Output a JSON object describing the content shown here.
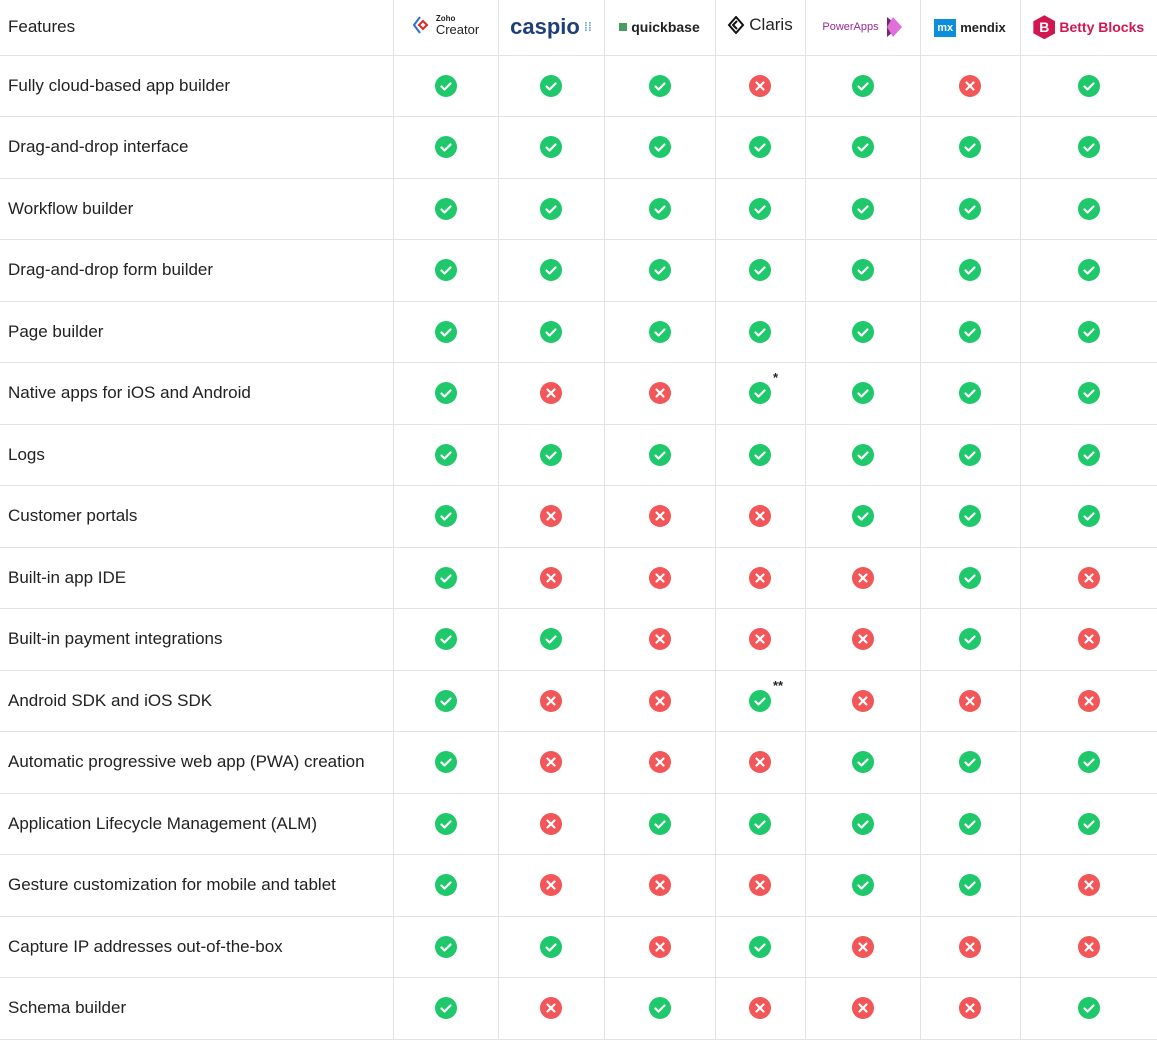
{
  "header": {
    "features_label": "Features"
  },
  "vendors": [
    {
      "key": "zoho",
      "top": "Zoho",
      "name": "Creator"
    },
    {
      "key": "caspio",
      "name": "caspio"
    },
    {
      "key": "quickbase",
      "name": "quickbase"
    },
    {
      "key": "claris",
      "name": "Claris"
    },
    {
      "key": "powerapps",
      "name": "PowerApps"
    },
    {
      "key": "mendix",
      "badge": "mx",
      "name": "mendix"
    },
    {
      "key": "betty",
      "badge": "B",
      "name": "Betty Blocks"
    }
  ],
  "colors": {
    "yes": "#1fc86a",
    "no": "#f25658"
  },
  "rows": [
    {
      "feature": "Fully cloud-based app builder",
      "values": [
        true,
        true,
        true,
        false,
        true,
        false,
        true
      ]
    },
    {
      "feature": "Drag-and-drop interface",
      "values": [
        true,
        true,
        true,
        true,
        true,
        true,
        true
      ]
    },
    {
      "feature": "Workflow builder",
      "values": [
        true,
        true,
        true,
        true,
        true,
        true,
        true
      ]
    },
    {
      "feature": "Drag-and-drop form builder",
      "values": [
        true,
        true,
        true,
        true,
        true,
        true,
        true
      ]
    },
    {
      "feature": "Page builder",
      "values": [
        true,
        true,
        true,
        true,
        true,
        true,
        true
      ]
    },
    {
      "feature": "Native apps for iOS and Android",
      "values": [
        true,
        false,
        false,
        true,
        true,
        true,
        true
      ],
      "notes": {
        "3": "*"
      }
    },
    {
      "feature": "Logs",
      "values": [
        true,
        true,
        true,
        true,
        true,
        true,
        true
      ]
    },
    {
      "feature": "Customer portals",
      "values": [
        true,
        false,
        false,
        false,
        true,
        true,
        true
      ]
    },
    {
      "feature": "Built-in app IDE",
      "values": [
        true,
        false,
        false,
        false,
        false,
        true,
        false
      ]
    },
    {
      "feature": "Built-in payment integrations",
      "values": [
        true,
        true,
        false,
        false,
        false,
        true,
        false
      ]
    },
    {
      "feature": "Android SDK and iOS SDK",
      "values": [
        true,
        false,
        false,
        true,
        false,
        false,
        false
      ],
      "notes": {
        "3": "**"
      }
    },
    {
      "feature": "Automatic progressive web app (PWA) creation",
      "values": [
        true,
        false,
        false,
        false,
        true,
        true,
        true
      ]
    },
    {
      "feature": "Application Lifecycle Management (ALM)",
      "values": [
        true,
        false,
        true,
        true,
        true,
        true,
        true
      ]
    },
    {
      "feature": "Gesture customization for mobile and tablet",
      "values": [
        true,
        false,
        false,
        false,
        true,
        true,
        false
      ]
    },
    {
      "feature": "Capture IP addresses out-of-the-box",
      "values": [
        true,
        true,
        false,
        true,
        false,
        false,
        false
      ]
    },
    {
      "feature": "Schema builder",
      "values": [
        true,
        false,
        true,
        false,
        false,
        false,
        true
      ]
    }
  ]
}
